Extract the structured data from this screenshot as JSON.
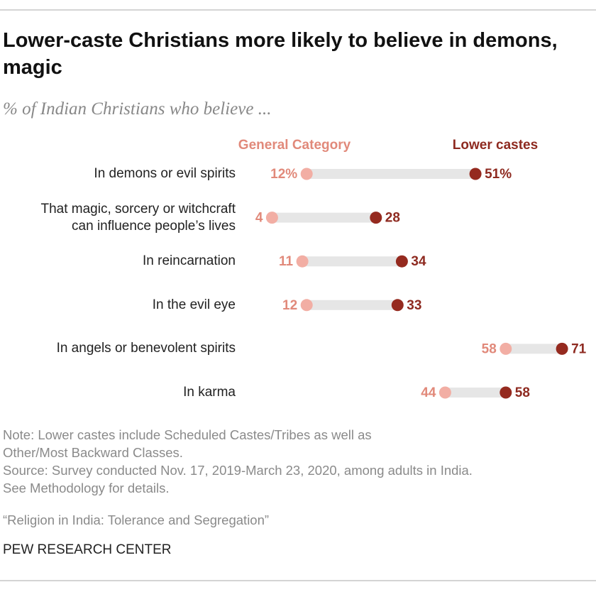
{
  "chart_data": {
    "type": "dumbbell",
    "title": "Lower-caste Christians more likely to believe in demons, magic",
    "subtitle": "% of Indian Christians who believe ...",
    "categories": [
      "In demons or evil spirits",
      "That magic, sorcery or witchcraft\ncan influence people’s lives",
      "In reincarnation",
      "In the evil eye",
      "In angels or benevolent spirits",
      "In karma"
    ],
    "series": [
      {
        "name": "General Category",
        "color": "#f2aea4",
        "label_color": "#e1897a",
        "values": [
          12,
          4,
          11,
          12,
          58,
          44
        ],
        "value_labels": [
          "12%",
          "4",
          "11",
          "12",
          "58",
          "44"
        ]
      },
      {
        "name": "Lower castes",
        "color": "#952a1f",
        "label_color": "#8e2a20",
        "values": [
          51,
          28,
          34,
          33,
          71,
          58
        ],
        "value_labels": [
          "51%",
          "28",
          "34",
          "33",
          "71",
          "58"
        ]
      }
    ],
    "bar_color": "#e6e6e6",
    "note": "Note: Lower castes include Scheduled Castes/Tribes as well as\nOther/Most Backward Classes.",
    "source": "Source: Survey conducted Nov. 17, 2019-March 23, 2020, among adults in India.\nSee Methodology for details.",
    "citation": "“Religion in India: Tolerance and Segregation”",
    "footer": "PEW RESEARCH CENTER"
  }
}
